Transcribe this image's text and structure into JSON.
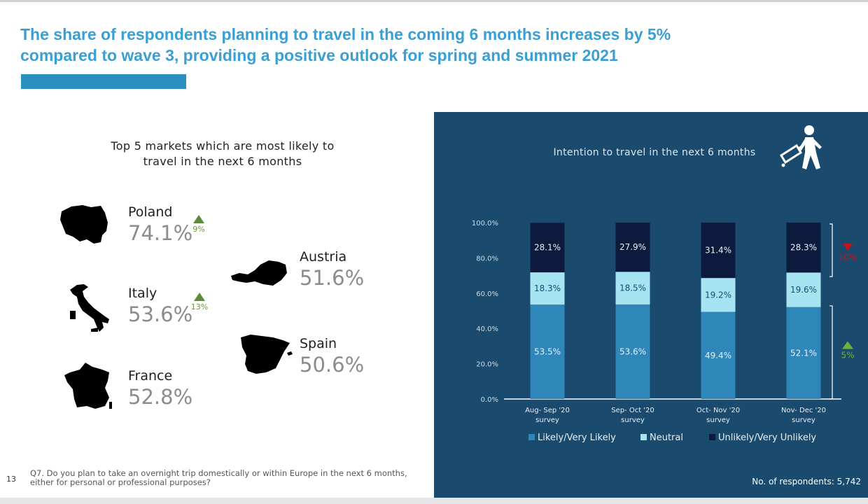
{
  "slide": {
    "title": "The share of respondents planning to travel in the coming 6 months increases by 5% compared to wave 3, providing a positive outlook for spring and summer 2021",
    "page_number": "13",
    "footnote": "Q7. Do you plan to take an overnight trip domestically or within Europe in the next 6 months, either for personal or professional purposes?"
  },
  "markets": {
    "heading": "Top 5 markets which are most likely to travel in the next 6 months",
    "items": [
      {
        "name": "Poland",
        "pct": "74.1%",
        "change": "9%",
        "trend": "up"
      },
      {
        "name": "Italy",
        "pct": "53.6%",
        "change": "13%",
        "trend": "up"
      },
      {
        "name": "France",
        "pct": "52.8%"
      },
      {
        "name": "Austria",
        "pct": "51.6%"
      },
      {
        "name": "Spain",
        "pct": "50.6%"
      }
    ]
  },
  "chart_data": {
    "type": "bar",
    "stacked": true,
    "title": "Intention to travel in the next 6 months",
    "categories": [
      "Aug- Sep '20 survey",
      "Sep- Oct '20 survey",
      "Oct- Nov '20 survey",
      "Nov- Dec '20 survey"
    ],
    "series": [
      {
        "name": "Likely/Very Likely",
        "color": "#2e87b8",
        "values": [
          53.5,
          53.6,
          49.4,
          52.1
        ],
        "labels": [
          "53.5%",
          "53.6%",
          "49.4%",
          "52.1%"
        ]
      },
      {
        "name": "Neutral",
        "color": "#a6e4f2",
        "values": [
          18.3,
          18.5,
          19.2,
          19.6
        ],
        "labels": [
          "18.3%",
          "18.5%",
          "19.2%",
          "19.6%"
        ]
      },
      {
        "name": "Unlikely/Very Unlikely",
        "color": "#0c1b3d",
        "values": [
          28.1,
          27.9,
          31.4,
          28.3
        ],
        "labels": [
          "28.1%",
          "27.9%",
          "31.4%",
          "28.3%"
        ]
      }
    ],
    "yticks": [
      "0.0%",
      "20.0%",
      "40.0%",
      "60.0%",
      "80.0%",
      "100.0%"
    ],
    "ylim": [
      0,
      100
    ],
    "legend_position": "bottom",
    "annotations": [
      {
        "series": "Unlikely/Very Unlikely",
        "text": "10%",
        "trend": "down",
        "color": "#c0141c"
      },
      {
        "series": "Likely/Very Likely",
        "text": "5%",
        "trend": "up",
        "color": "#6fb23a"
      }
    ],
    "respondents": "No. of respondents: 5,742"
  },
  "icons": [
    "poland-map-icon",
    "italy-map-icon",
    "france-map-icon",
    "austria-map-icon",
    "spain-map-icon",
    "traveler-icon"
  ],
  "colors": {
    "title": "#3a9fd3",
    "panel": "#1a4b6e",
    "up": "#5e8b3a",
    "down": "#c0141c"
  }
}
